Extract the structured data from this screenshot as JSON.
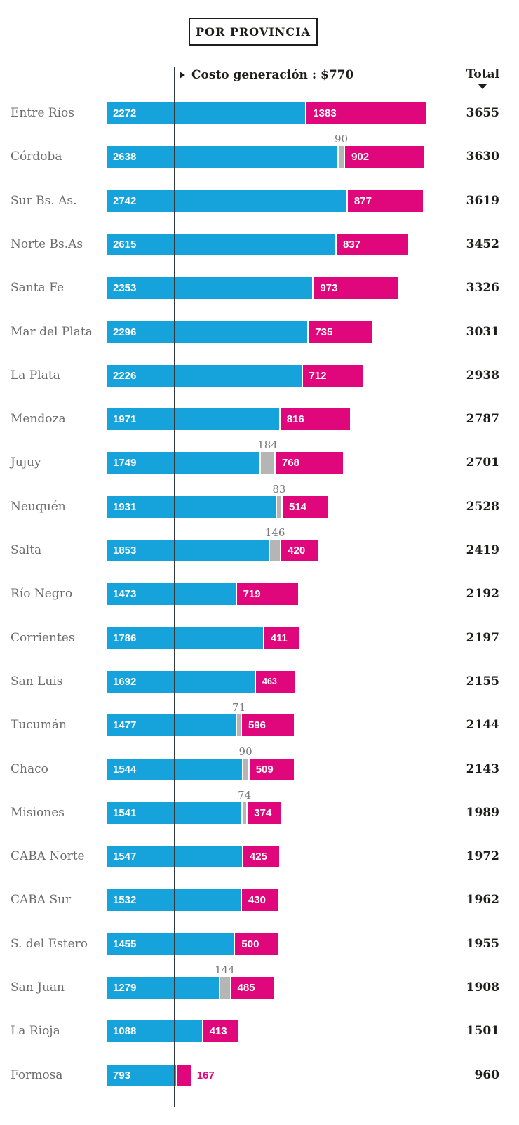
{
  "header": {
    "title": "POR PROVINCIA",
    "threshold_label": "Costo generación : $770",
    "total_label": "Total"
  },
  "colors": {
    "blue": "#16a2db",
    "pink": "#e0067c",
    "gray": "#b5b5b5",
    "ink": "#1d1d1b",
    "category_label": "#6d6d6d",
    "overflow_label": "#7b7b7b",
    "threshold_line": "#33383d"
  },
  "chart_data": {
    "type": "bar",
    "subtype": "horizontal-stacked",
    "title": "POR PROVINCIA",
    "threshold": {
      "label": "Costo generación : $770",
      "value": 770
    },
    "total_label": "Total",
    "sort": "total-descending-marker",
    "series": [
      {
        "name": "segmento-azul",
        "color_key": "blue"
      },
      {
        "name": "segmento-gris",
        "color_key": "gray"
      },
      {
        "name": "segmento-rosa",
        "color_key": "pink"
      }
    ],
    "x_axis": {
      "min": 0,
      "max_total": 3655
    },
    "rows": [
      {
        "label": "Entre Ríos",
        "blue": 2272,
        "gray": null,
        "pink": 1383,
        "total": 3655
      },
      {
        "label": "Córdoba",
        "blue": 2638,
        "gray": 90,
        "pink": 902,
        "total": 3630
      },
      {
        "label": "Sur Bs. As.",
        "blue": 2742,
        "gray": null,
        "pink": 877,
        "total": 3619
      },
      {
        "label": "Norte Bs.As",
        "blue": 2615,
        "gray": null,
        "pink": 837,
        "total": 3452
      },
      {
        "label": "Santa Fe",
        "blue": 2353,
        "gray": null,
        "pink": 973,
        "total": 3326
      },
      {
        "label": "Mar del Plata",
        "blue": 2296,
        "gray": null,
        "pink": 735,
        "total": 3031
      },
      {
        "label": "La Plata",
        "blue": 2226,
        "gray": null,
        "pink": 712,
        "total": 2938
      },
      {
        "label": "Mendoza",
        "blue": 1971,
        "gray": null,
        "pink": 816,
        "total": 2787
      },
      {
        "label": "Jujuy",
        "blue": 1749,
        "gray": 184,
        "pink": 768,
        "total": 2701
      },
      {
        "label": "Neuquén",
        "blue": 1931,
        "gray": 83,
        "pink": 514,
        "total": 2528
      },
      {
        "label": "Salta",
        "blue": 1853,
        "gray": 146,
        "pink": 420,
        "total": 2419
      },
      {
        "label": "Río Negro",
        "blue": 1473,
        "gray": null,
        "pink": 719,
        "total": 2192
      },
      {
        "label": "Corrientes",
        "blue": 1786,
        "gray": null,
        "pink": 411,
        "total": 2197
      },
      {
        "label": "San Luis",
        "blue": 1692,
        "gray": null,
        "pink": 463,
        "total": 2155,
        "pink_label_small": true
      },
      {
        "label": "Tucumán",
        "blue": 1477,
        "gray": 71,
        "pink": 596,
        "total": 2144
      },
      {
        "label": "Chaco",
        "blue": 1544,
        "gray": 90,
        "pink": 509,
        "total": 2143
      },
      {
        "label": "Misiones",
        "blue": 1541,
        "gray": 74,
        "pink": 374,
        "total": 1989
      },
      {
        "label": "CABA Norte",
        "blue": 1547,
        "gray": null,
        "pink": 425,
        "total": 1972
      },
      {
        "label": "CABA Sur",
        "blue": 1532,
        "gray": null,
        "pink": 430,
        "total": 1962
      },
      {
        "label": "S. del Estero",
        "blue": 1455,
        "gray": null,
        "pink": 500,
        "total": 1955
      },
      {
        "label": "San Juan",
        "blue": 1279,
        "gray": 144,
        "pink": 485,
        "total": 1908
      },
      {
        "label": "La Rioja",
        "blue": 1088,
        "gray": null,
        "pink": 413,
        "total": 1501
      },
      {
        "label": "Formosa",
        "blue": 793,
        "gray": null,
        "pink": 167,
        "total": 960,
        "pink_label_outside": true
      }
    ]
  }
}
